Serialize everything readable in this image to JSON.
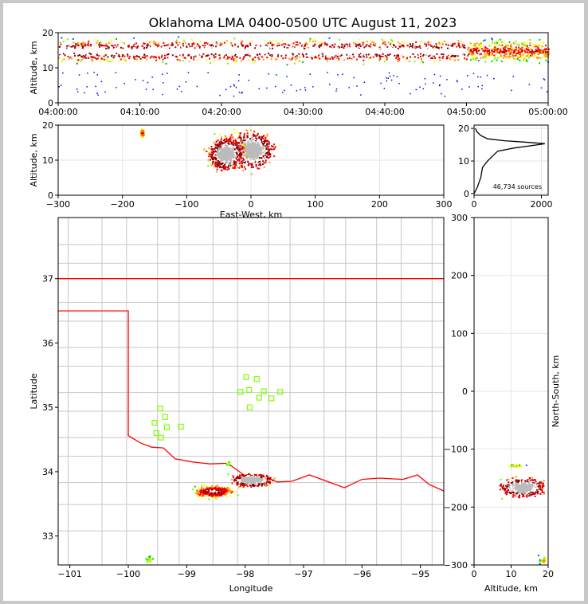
{
  "title": "Oklahoma LMA 0400-0500 UTC August 11, 2023",
  "chart_data": [
    {
      "id": "time-height",
      "type": "scatter",
      "xlabel": "",
      "ylabel": "Altitude, km",
      "x_ticks": [
        "04:00:00",
        "04:10:00",
        "04:20:00",
        "04:30:00",
        "04:40:00",
        "04:50:00",
        "05:00:00"
      ],
      "xlim_minutes": [
        0,
        60
      ],
      "ylim": [
        0,
        20
      ],
      "y_ticks": [
        0,
        10,
        20
      ],
      "core_altitude_km": 15,
      "altitude_spread_km": [
        8,
        20
      ]
    },
    {
      "id": "east-west-altitude",
      "type": "scatter",
      "xlabel": "East-West, km",
      "ylabel": "Altitude, km",
      "xlim": [
        -300,
        300
      ],
      "x_ticks": [
        -300,
        -200,
        -100,
        0,
        100,
        200,
        300
      ],
      "ylim": [
        0,
        20
      ],
      "y_ticks": [
        0,
        10,
        20
      ],
      "clusters": [
        {
          "x_km": 0,
          "alt_km": 13,
          "x_half_width_km": 45,
          "alt_half_width_km": 7,
          "peak": "dense"
        },
        {
          "x_km": -40,
          "alt_km": 12,
          "x_half_width_km": 35,
          "alt_half_width_km": 6,
          "peak": "dense"
        },
        {
          "x_km": -170,
          "alt_km": 18,
          "x_half_width_km": 6,
          "alt_half_width_km": 2,
          "peak": "sparse"
        }
      ]
    },
    {
      "id": "altitude-histogram",
      "type": "line",
      "xlabel": "",
      "ylabel": "",
      "xlim": [
        0,
        2200
      ],
      "x_ticks": [
        0,
        2000
      ],
      "ylim": [
        0,
        20
      ],
      "y_ticks": [
        0,
        10,
        20
      ],
      "annotation": "46,734 sources",
      "profile": [
        [
          0,
          0
        ],
        [
          100,
          2
        ],
        [
          200,
          5
        ],
        [
          250,
          8
        ],
        [
          400,
          10
        ],
        [
          600,
          12
        ],
        [
          700,
          13
        ],
        [
          1200,
          14
        ],
        [
          1900,
          15
        ],
        [
          2100,
          15.3
        ],
        [
          1500,
          15.8
        ],
        [
          900,
          16.2
        ],
        [
          400,
          16.8
        ],
        [
          200,
          17.8
        ],
        [
          80,
          19
        ],
        [
          40,
          20
        ]
      ]
    },
    {
      "id": "plan-view",
      "type": "scatter",
      "xlabel": "Longitude",
      "ylabel": "Latitude",
      "xlim": [
        -101.2,
        -94.6
      ],
      "x_ticks": [
        -101,
        -100,
        -99,
        -98,
        -97,
        -96,
        -95
      ],
      "ylim": [
        32.55,
        37.95
      ],
      "y_ticks": [
        33,
        34,
        35,
        36,
        37
      ],
      "stations": [
        {
          "lon": -97.98,
          "lat": 35.47
        },
        {
          "lon": -97.8,
          "lat": 35.44
        },
        {
          "lon": -98.08,
          "lat": 35.24
        },
        {
          "lon": -97.93,
          "lat": 35.27
        },
        {
          "lon": -97.68,
          "lat": 35.25
        },
        {
          "lon": -97.76,
          "lat": 35.15
        },
        {
          "lon": -97.55,
          "lat": 35.14
        },
        {
          "lon": -97.4,
          "lat": 35.24
        },
        {
          "lon": -97.92,
          "lat": 35.0
        },
        {
          "lon": -99.45,
          "lat": 34.98
        },
        {
          "lon": -99.37,
          "lat": 34.85
        },
        {
          "lon": -99.55,
          "lat": 34.76
        },
        {
          "lon": -99.34,
          "lat": 34.69
        },
        {
          "lon": -99.1,
          "lat": 34.7
        },
        {
          "lon": -99.52,
          "lat": 34.6
        },
        {
          "lon": -99.44,
          "lat": 34.53
        }
      ],
      "clusters": [
        {
          "lon": -97.9,
          "lat": 33.88,
          "lon_half_width": 0.45,
          "lat_half_width": 0.13,
          "peak": "dense"
        },
        {
          "lon": -98.55,
          "lat": 33.7,
          "lon_half_width": 0.45,
          "lat_half_width": 0.12,
          "peak": "medium"
        },
        {
          "lon": -99.65,
          "lat": 32.65,
          "lon_half_width": 0.08,
          "lat_half_width": 0.07,
          "peak": "sparse"
        },
        {
          "lon": -98.3,
          "lat": 34.13,
          "lon_half_width": 0.05,
          "lat_half_width": 0.03,
          "peak": "sparse"
        }
      ],
      "state_border_color": "#ff0000",
      "county_border_color": "#c8c8c8",
      "station_color": "#7fff00"
    },
    {
      "id": "altitude-north-south",
      "type": "scatter",
      "xlabel": "Altitude, km",
      "ylabel": "North-South, km",
      "xlim": [
        0,
        20
      ],
      "x_ticks": [
        0,
        10,
        20
      ],
      "ylim": [
        -300,
        300
      ],
      "y_ticks": [
        -300,
        -200,
        -100,
        0,
        100,
        200,
        300
      ],
      "clusters": [
        {
          "alt_km": 13,
          "ns_km": -165,
          "alt_half_width_km": 8,
          "ns_half_width_km": 22,
          "peak": "dense"
        },
        {
          "alt_km": 19,
          "ns_km": -290,
          "alt_half_width_km": 2,
          "ns_half_width_km": 12,
          "peak": "sparse"
        },
        {
          "alt_km": 11,
          "ns_km": -128,
          "alt_half_width_km": 3,
          "ns_half_width_km": 3,
          "peak": "sparse"
        }
      ]
    }
  ]
}
